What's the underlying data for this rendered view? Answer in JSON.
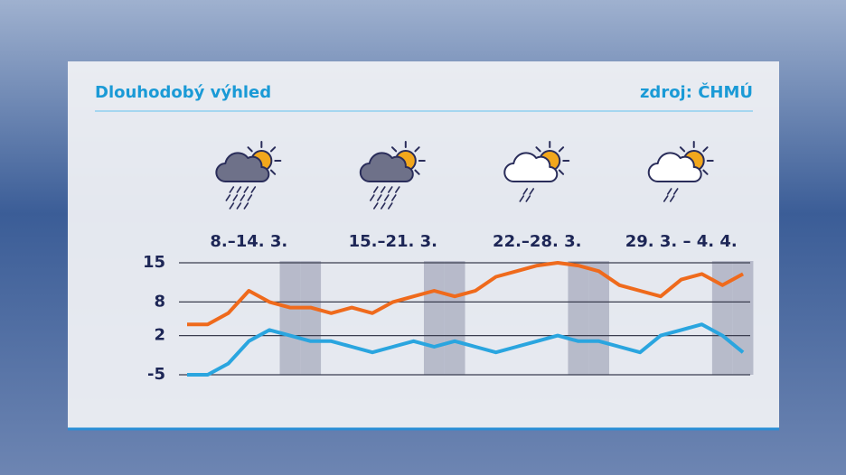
{
  "chart_data": {
    "type": "line",
    "title": "Dlouhodobý výhled",
    "source": "zdroj: ČHMÚ",
    "periods": [
      {
        "label": "8.–14. 3.",
        "icon": "rain"
      },
      {
        "label": "15.–21. 3.",
        "icon": "rain"
      },
      {
        "label": "22.–28. 3.",
        "icon": "showers"
      },
      {
        "label": "29. 3. – 4. 4.",
        "icon": "showers"
      }
    ],
    "categories": [
      null,
      null,
      null,
      null,
      null,
      null,
      null,
      null,
      null,
      null,
      null,
      null,
      null,
      null,
      null,
      null,
      null,
      null,
      null,
      null,
      null,
      null,
      null,
      null,
      null,
      null,
      null,
      null
    ],
    "shaded_days": [
      5,
      6,
      12,
      13,
      19,
      20,
      26,
      27
    ],
    "series": [
      {
        "color": "#ef6a1c",
        "values": [
          4,
          4,
          6,
          10,
          8,
          7,
          7,
          6,
          7,
          6,
          8,
          9,
          10,
          9,
          10,
          12.5,
          13.5,
          14.5,
          15,
          14.5,
          13.5,
          11,
          10,
          9,
          12,
          13,
          11,
          13
        ]
      },
      {
        "color": "#2aa5df",
        "values": [
          -5,
          -5,
          -3,
          1,
          3,
          2,
          1,
          1,
          0,
          -1,
          0,
          1,
          0,
          1,
          0,
          -1,
          0,
          1,
          2,
          1,
          1,
          0,
          -1,
          2,
          3,
          4,
          2,
          -1
        ]
      }
    ],
    "ylim": [
      -5,
      15
    ],
    "yticks": [
      15,
      8,
      2,
      -5
    ],
    "grid": true
  }
}
